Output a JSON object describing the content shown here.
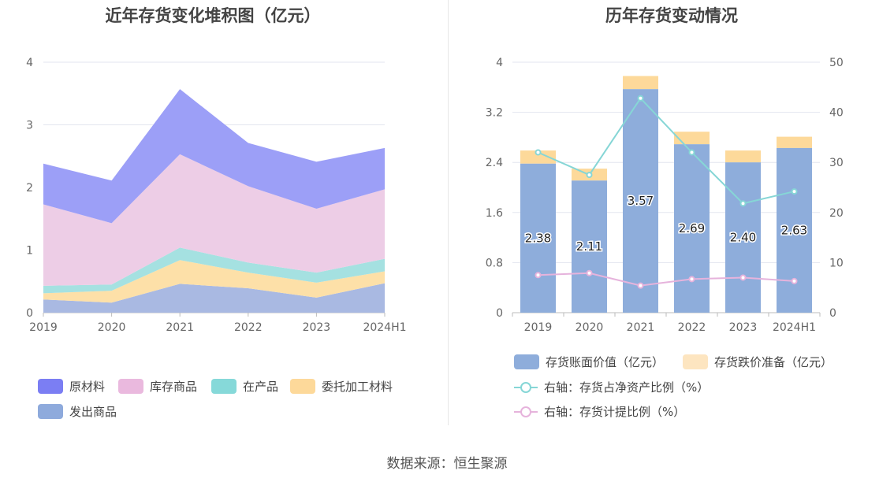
{
  "titles": {
    "left": "近年存货变化堆积图（亿元）",
    "right": "历年存货变动情况"
  },
  "source": "数据来源：恒生聚源",
  "chart_data": [
    {
      "type": "area",
      "stacked": true,
      "title": "近年存货变化堆积图（亿元）",
      "categories": [
        "2019",
        "2020",
        "2021",
        "2022",
        "2023",
        "2024H1"
      ],
      "ylim": [
        0,
        4
      ],
      "yticks": [
        "0",
        "1",
        "2",
        "3",
        "4"
      ],
      "grid": true,
      "legend_position": "bottom",
      "series": [
        {
          "name": "发出商品",
          "color": "#a9b9e2",
          "values": [
            0.21,
            0.16,
            0.46,
            0.39,
            0.24,
            0.47
          ]
        },
        {
          "name": "委托加工材料",
          "color": "#fde0a8",
          "values": [
            0.1,
            0.19,
            0.38,
            0.25,
            0.24,
            0.19
          ]
        },
        {
          "name": "在产品",
          "color": "#a5e1e1",
          "values": [
            0.12,
            0.1,
            0.2,
            0.16,
            0.16,
            0.2
          ]
        },
        {
          "name": "库存商品",
          "color": "#edcde6",
          "values": [
            1.3,
            0.98,
            1.49,
            1.22,
            1.02,
            1.11
          ]
        },
        {
          "name": "原材料",
          "color": "#9c9ff7",
          "values": [
            0.65,
            0.68,
            1.04,
            0.69,
            0.75,
            0.66
          ]
        }
      ],
      "legend": [
        {
          "name": "原材料",
          "color": "#7b7ef3"
        },
        {
          "name": "库存商品",
          "color": "#eab9de"
        },
        {
          "name": "在产品",
          "color": "#86d9d9"
        },
        {
          "name": "委托加工材料",
          "color": "#fdd99a"
        },
        {
          "name": "发出商品",
          "color": "#8eaadc"
        }
      ]
    },
    {
      "type": "bar",
      "stacked": true,
      "title": "历年存货变动情况",
      "categories": [
        "2019",
        "2020",
        "2021",
        "2022",
        "2023",
        "2024H1"
      ],
      "ylim": [
        0,
        4
      ],
      "yticks": [
        "0",
        "0.8",
        "1.6",
        "2.4",
        "3.2",
        "4"
      ],
      "y2lim": [
        0,
        50
      ],
      "y2ticks": [
        "0",
        "10",
        "20",
        "30",
        "40",
        "50"
      ],
      "grid": true,
      "legend_position": "bottom",
      "bars": [
        {
          "name": "存货账面价值（亿元）",
          "color": "#8eaddb",
          "values": [
            2.38,
            2.11,
            3.57,
            2.69,
            2.4,
            2.63
          ],
          "labels": [
            "2.38",
            "2.11",
            "3.57",
            "2.69",
            "2.40",
            "2.63"
          ]
        },
        {
          "name": "存货跌价准备（亿元）",
          "color": "#fdd99a",
          "values": [
            0.21,
            0.19,
            0.21,
            0.2,
            0.19,
            0.18
          ]
        }
      ],
      "lines": [
        {
          "name": "右轴：存货占净资产比例（%）",
          "color": "#86d6d6",
          "axis": "right",
          "values": [
            32.0,
            27.5,
            42.8,
            32.0,
            21.8,
            24.2
          ]
        },
        {
          "name": "右轴：存货计提比例（%）",
          "color": "#e6b3dc",
          "axis": "right",
          "values": [
            7.5,
            7.9,
            5.4,
            6.7,
            7.0,
            6.3
          ]
        }
      ],
      "legend": [
        {
          "name": "存货账面价值（亿元）",
          "color": "#8eaddb",
          "kind": "bar"
        },
        {
          "name": "存货跌价准备（亿元）",
          "color": "#fde5c0",
          "kind": "bar"
        },
        {
          "name": "右轴：存货占净资产比例（%）",
          "color": "#86d6d6",
          "kind": "line"
        },
        {
          "name": "右轴：存货计提比例（%）",
          "color": "#e6b3dc",
          "kind": "line"
        }
      ]
    }
  ]
}
